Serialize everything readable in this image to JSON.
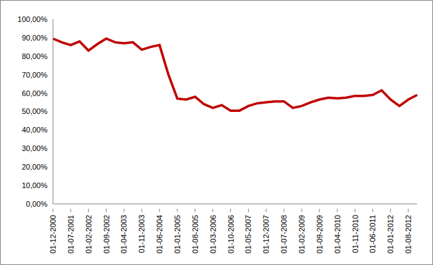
{
  "chart_data": {
    "type": "line",
    "categories": [
      "01-12-2000",
      null,
      "01-07-2001",
      null,
      "01-02-2002",
      null,
      "01-09-2002",
      null,
      "01-04-2003",
      null,
      "01-11-2003",
      null,
      "01-06-2004",
      null,
      "01-01-2005",
      null,
      "01-08-2005",
      null,
      "01-03-2006",
      null,
      "01-10-2006",
      null,
      "01-05-2007",
      null,
      "01-12-2007",
      null,
      "01-07-2008",
      null,
      "01-02-2009",
      null,
      "01-09-2009",
      null,
      "01-04-2010",
      null,
      "01-11-2010",
      null,
      "01-06-2011",
      null,
      "01-01-2012",
      null,
      "01-08-2012",
      null
    ],
    "values": [
      89.5,
      87.5,
      86,
      88,
      83,
      86.5,
      89.5,
      87.5,
      87,
      87.5,
      83.5,
      85,
      86,
      70,
      57,
      56.5,
      58,
      54,
      52,
      53.5,
      50.5,
      50.5,
      53,
      54.5,
      55,
      55.5,
      55.5,
      52,
      53,
      55,
      56.5,
      57.5,
      57.2,
      57.5,
      58.5,
      58.5,
      59,
      61.5,
      56.5,
      53,
      56.5,
      59
    ],
    "color": "#c00000",
    "ylim": [
      0,
      100
    ],
    "yticks": [
      {
        "value": 0,
        "label": "0,00%"
      },
      {
        "value": 10,
        "label": "10,00%"
      },
      {
        "value": 20,
        "label": "20,00%"
      },
      {
        "value": 30,
        "label": "30,00%"
      },
      {
        "value": 40,
        "label": "40,00%"
      },
      {
        "value": 50,
        "label": "50,00%"
      },
      {
        "value": 60,
        "label": "60,00%"
      },
      {
        "value": 70,
        "label": "70,00%"
      },
      {
        "value": 80,
        "label": "80,00%"
      },
      {
        "value": 90,
        "label": "90,00%"
      },
      {
        "value": 100,
        "label": "100,00%"
      }
    ],
    "grid": false
  }
}
